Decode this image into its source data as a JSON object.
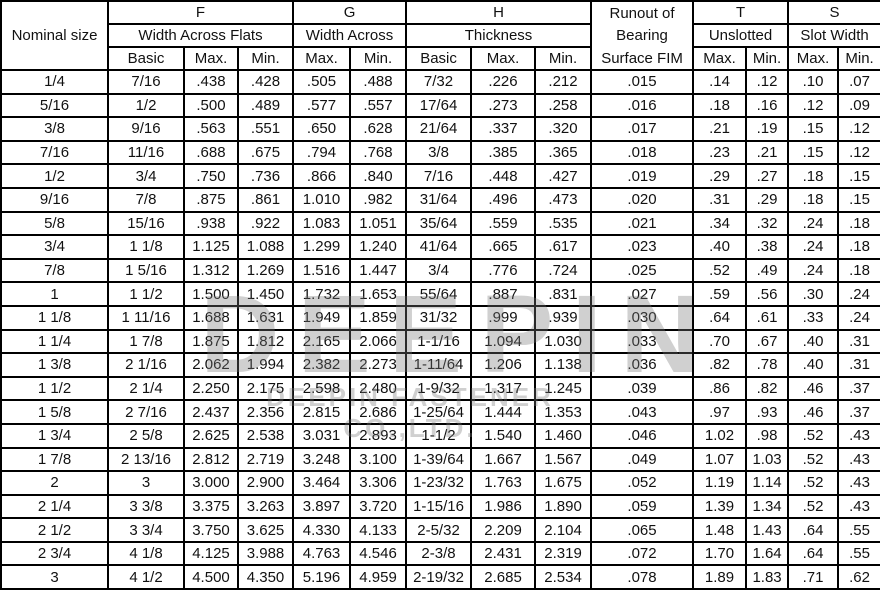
{
  "header": {
    "nominal_size": "Nominal size",
    "F": "F",
    "F_sub": "Width Across Flats",
    "G": "G",
    "G_sub": "Width Across",
    "H": "H",
    "H_sub": "Thickness",
    "runout": [
      "Runout of",
      "Bearing",
      "Surface FIM"
    ],
    "T": "T",
    "T_sub": "Unslotted",
    "S": "S",
    "S_sub": "Slot Width",
    "sub_columns": [
      "Basic",
      "Max.",
      "Min.",
      "Max.",
      "Min.",
      "Basic",
      "Max.",
      "Min.",
      "Max.",
      "Min.",
      "Max.",
      "Min."
    ]
  },
  "rows": [
    [
      "1/4",
      "7/16",
      ".438",
      ".428",
      ".505",
      ".488",
      "7/32",
      ".226",
      ".212",
      ".015",
      ".14",
      ".12",
      ".10",
      ".07"
    ],
    [
      "5/16",
      "1/2",
      ".500",
      ".489",
      ".577",
      ".557",
      "17/64",
      ".273",
      ".258",
      ".016",
      ".18",
      ".16",
      ".12",
      ".09"
    ],
    [
      "3/8",
      "9/16",
      ".563",
      ".551",
      ".650",
      ".628",
      "21/64",
      ".337",
      ".320",
      ".017",
      ".21",
      ".19",
      ".15",
      ".12"
    ],
    [
      "7/16",
      "11/16",
      ".688",
      ".675",
      ".794",
      ".768",
      "3/8",
      ".385",
      ".365",
      ".018",
      ".23",
      ".21",
      ".15",
      ".12"
    ],
    [
      "1/2",
      "3/4",
      ".750",
      ".736",
      ".866",
      ".840",
      "7/16",
      ".448",
      ".427",
      ".019",
      ".29",
      ".27",
      ".18",
      ".15"
    ],
    [
      "9/16",
      "7/8",
      ".875",
      ".861",
      "1.010",
      ".982",
      "31/64",
      ".496",
      ".473",
      ".020",
      ".31",
      ".29",
      ".18",
      ".15"
    ],
    [
      "5/8",
      "15/16",
      ".938",
      ".922",
      "1.083",
      "1.051",
      "35/64",
      ".559",
      ".535",
      ".021",
      ".34",
      ".32",
      ".24",
      ".18"
    ],
    [
      "3/4",
      "1 1/8",
      "1.125",
      "1.088",
      "1.299",
      "1.240",
      "41/64",
      ".665",
      ".617",
      ".023",
      ".40",
      ".38",
      ".24",
      ".18"
    ],
    [
      "7/8",
      "1 5/16",
      "1.312",
      "1.269",
      "1.516",
      "1.447",
      "3/4",
      ".776",
      ".724",
      ".025",
      ".52",
      ".49",
      ".24",
      ".18"
    ],
    [
      "1",
      "1 1/2",
      "1.500",
      "1.450",
      "1.732",
      "1.653",
      "55/64",
      ".887",
      ".831",
      ".027",
      ".59",
      ".56",
      ".30",
      ".24"
    ],
    [
      "1 1/8",
      "1 11/16",
      "1.688",
      "1.631",
      "1.949",
      "1.859",
      "31/32",
      ".999",
      ".939",
      ".030",
      ".64",
      ".61",
      ".33",
      ".24"
    ],
    [
      "1 1/4",
      "1 7/8",
      "1.875",
      "1.812",
      "2.165",
      "2.066",
      "1-1/16",
      "1.094",
      "1.030",
      ".033",
      ".70",
      ".67",
      ".40",
      ".31"
    ],
    [
      "1 3/8",
      "2 1/16",
      "2.062",
      "1.994",
      "2.382",
      "2.273",
      "1-11/64",
      "1.206",
      "1.138",
      ".036",
      ".82",
      ".78",
      ".40",
      ".31"
    ],
    [
      "1 1/2",
      "2 1/4",
      "2.250",
      "2.175",
      "2.598",
      "2.480",
      "1-9/32",
      "1.317",
      "1.245",
      ".039",
      ".86",
      ".82",
      ".46",
      ".37"
    ],
    [
      "1 5/8",
      "2 7/16",
      "2.437",
      "2.356",
      "2.815",
      "2.686",
      "1-25/64",
      "1.444",
      "1.353",
      ".043",
      ".97",
      ".93",
      ".46",
      ".37"
    ],
    [
      "1 3/4",
      "2 5/8",
      "2.625",
      "2.538",
      "3.031",
      "2.893",
      "1-1/2",
      "1.540",
      "1.460",
      ".046",
      "1.02",
      ".98",
      ".52",
      ".43"
    ],
    [
      "1 7/8",
      "2 13/16",
      "2.812",
      "2.719",
      "3.248",
      "3.100",
      "1-39/64",
      "1.667",
      "1.567",
      ".049",
      "1.07",
      "1.03",
      ".52",
      ".43"
    ],
    [
      "2",
      "3",
      "3.000",
      "2.900",
      "3.464",
      "3.306",
      "1-23/32",
      "1.763",
      "1.675",
      ".052",
      "1.19",
      "1.14",
      ".52",
      ".43"
    ],
    [
      "2 1/4",
      "3 3/8",
      "3.375",
      "3.263",
      "3.897",
      "3.720",
      "1-15/16",
      "1.986",
      "1.890",
      ".059",
      "1.39",
      "1.34",
      ".52",
      ".43"
    ],
    [
      "2 1/2",
      "3 3/4",
      "3.750",
      "3.625",
      "4.330",
      "4.133",
      "2-5/32",
      "2.209",
      "2.104",
      ".065",
      "1.48",
      "1.43",
      ".64",
      ".55"
    ],
    [
      "2 3/4",
      "4 1/8",
      "4.125",
      "3.988",
      "4.763",
      "4.546",
      "2-3/8",
      "2.431",
      "2.319",
      ".072",
      "1.70",
      "1.64",
      ".64",
      ".55"
    ],
    [
      "3",
      "4 1/2",
      "4.500",
      "4.350",
      "5.196",
      "4.959",
      "2-19/32",
      "2.685",
      "2.534",
      ".078",
      "1.89",
      "1.83",
      ".71",
      ".62"
    ]
  ],
  "watermark": {
    "big": "DEEPIN",
    "small": "DEEPIN FASTENER CO.,LTD."
  }
}
